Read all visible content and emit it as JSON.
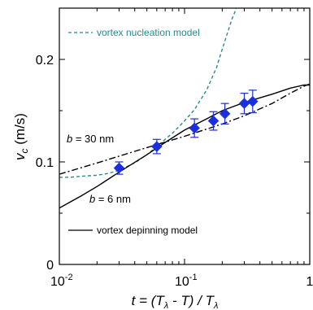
{
  "chart_data": {
    "type": "line",
    "xscale": "log",
    "xlim": [
      0.01,
      1
    ],
    "ylim": [
      0,
      0.25
    ],
    "x_ticks": [
      {
        "base": "10",
        "exp": "-2",
        "value": 0.01
      },
      {
        "base": "10",
        "exp": "-1",
        "value": 0.1
      },
      {
        "base": "1",
        "exp": "",
        "value": 1
      }
    ],
    "y_ticks": [
      "0",
      "0.1",
      "0.2"
    ],
    "y_tick_values": [
      0,
      0.1,
      0.2
    ],
    "xlabel": {
      "pre": "t = (T",
      "sub1": "λ",
      "mid": " - T) / T",
      "sub2": "λ"
    },
    "ylabel": {
      "main": "v",
      "sub": "c",
      "unit": " (m/s)"
    },
    "legend_nucleation": "vortex nucleation model",
    "legend_depinning": "vortex depinning model",
    "annotations": {
      "b30": {
        "italic": "b",
        "rest": " = 30 nm"
      },
      "b6": {
        "italic": "b",
        "rest": " = 6 nm"
      }
    },
    "series": [
      {
        "name": "vortex nucleation model",
        "style": "dashed",
        "color": "#2a8a8a",
        "x": [
          0.01,
          0.012,
          0.015,
          0.02,
          0.025,
          0.03,
          0.04,
          0.05,
          0.06,
          0.07,
          0.08,
          0.1,
          0.12,
          0.15,
          0.18,
          0.21,
          0.24,
          0.26
        ],
        "y": [
          0.085,
          0.085,
          0.086,
          0.087,
          0.089,
          0.092,
          0.099,
          0.107,
          0.115,
          0.122,
          0.128,
          0.14,
          0.151,
          0.17,
          0.192,
          0.218,
          0.24,
          0.25
        ]
      },
      {
        "name": "vortex depinning model (b = 6 nm)",
        "style": "solid",
        "color": "#000000",
        "x": [
          0.01,
          0.015,
          0.02,
          0.03,
          0.05,
          0.07,
          0.1,
          0.15,
          0.2,
          0.3,
          0.5,
          0.7,
          0.9,
          1
        ],
        "y": [
          0.055,
          0.067,
          0.076,
          0.09,
          0.107,
          0.119,
          0.131,
          0.142,
          0.15,
          0.158,
          0.166,
          0.172,
          0.175,
          0.175
        ]
      },
      {
        "name": "b = 30 nm",
        "style": "dashdot",
        "color": "#000000",
        "x": [
          0.01,
          0.02,
          0.05,
          0.1,
          0.2,
          0.3,
          0.5,
          0.7,
          0.9,
          1
        ],
        "y": [
          0.088,
          0.099,
          0.114,
          0.125,
          0.137,
          0.145,
          0.157,
          0.167,
          0.174,
          0.176
        ]
      }
    ],
    "points": {
      "name": "data",
      "color": "#1a2fe0",
      "x": [
        0.03,
        0.06,
        0.12,
        0.17,
        0.21,
        0.3,
        0.35
      ],
      "y": [
        0.094,
        0.115,
        0.133,
        0.14,
        0.147,
        0.157,
        0.159
      ],
      "err": [
        0.006,
        0.007,
        0.009,
        0.009,
        0.01,
        0.01,
        0.011
      ]
    }
  }
}
